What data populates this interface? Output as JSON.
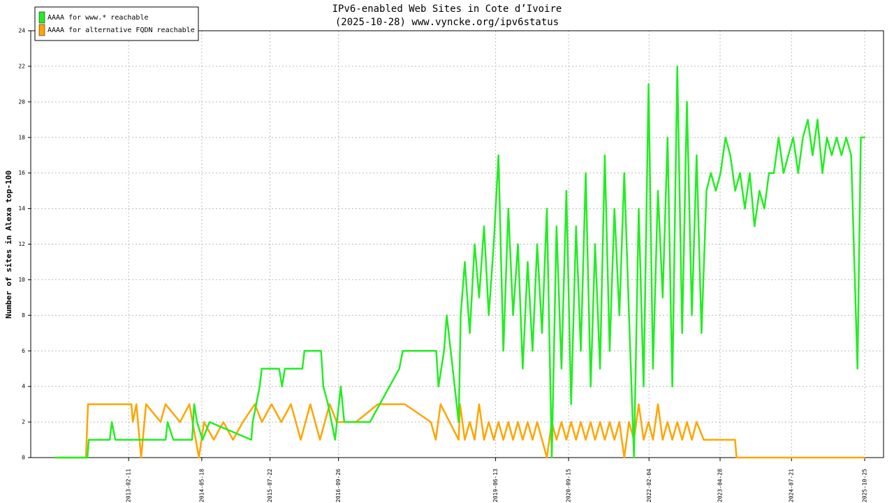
{
  "chart_data": {
    "type": "line",
    "title": "IPv6-enabled Web Sites in Cote d’Ivoire",
    "subtitle": "(2025-10-28) www.vyncke.org/ipv6status",
    "y_label": "Number of sites in Alexa top-100",
    "xlim": [
      "2011-06-05",
      "2026-02-21"
    ],
    "xticks": [
      "2013-02-11",
      "2014-05-18",
      "2015-07-22",
      "2016-09-26",
      "2019-06-13",
      "2020-09-15",
      "2022-02-04",
      "2023-04-28",
      "2024-07-21",
      "2025-10-25"
    ],
    "ylim": [
      0,
      24
    ],
    "yticks": [
      0,
      2,
      4,
      6,
      8,
      10,
      12,
      14,
      16,
      18,
      20,
      22,
      24
    ],
    "grid": true,
    "legend": "upper left",
    "series": [
      {
        "name": "AAAA for www.* reachable",
        "color": "#22ee22",
        "x": [
          "2011-11-03",
          "2012-05-27",
          "2012-06-05",
          "2012-10-15",
          "2012-10-28",
          "2012-11-19",
          "2013-10-02",
          "2013-10-15",
          "2013-11-20",
          "2014-03-18",
          "2014-03-31",
          "2014-04-18",
          "2014-05-23",
          "2014-07-06",
          "2015-03-26",
          "2015-04-04",
          "2015-05-18",
          "2015-05-31",
          "2015-09-18",
          "2015-10-06",
          "2015-10-24",
          "2016-02-11",
          "2016-02-24",
          "2016-06-08",
          "2016-06-22",
          "2016-07-22",
          "2016-08-13",
          "2016-09-04",
          "2016-10-10",
          "2016-11-01",
          "2017-04-12",
          "2017-10-14",
          "2017-11-05",
          "2018-06-04",
          "2018-06-18",
          "2018-07-23",
          "2018-08-09",
          "2018-10-23",
          "2018-11-05",
          "2018-12-01",
          "2019-01-01",
          "2019-02-01",
          "2019-03-01",
          "2019-04-01",
          "2019-05-01",
          "2019-06-01",
          "2019-07-01",
          "2019-08-01",
          "2019-09-01",
          "2019-10-01",
          "2019-11-01",
          "2019-12-01",
          "2020-01-01",
          "2020-02-01",
          "2020-03-01",
          "2020-04-01",
          "2020-05-01",
          "2020-06-01",
          "2020-07-01",
          "2020-08-01",
          "2020-09-01",
          "2020-10-01",
          "2020-11-01",
          "2020-12-01",
          "2021-01-01",
          "2021-02-01",
          "2021-03-01",
          "2021-04-01",
          "2021-05-01",
          "2021-06-01",
          "2021-07-01",
          "2021-08-01",
          "2021-09-01",
          "2021-10-01",
          "2021-11-01",
          "2021-12-01",
          "2022-01-01",
          "2022-02-01",
          "2022-03-01",
          "2022-04-01",
          "2022-05-01",
          "2022-06-01",
          "2022-07-01",
          "2022-08-01",
          "2022-09-01",
          "2022-10-01",
          "2022-11-01",
          "2022-12-01",
          "2023-01-01",
          "2023-02-01",
          "2023-03-01",
          "2023-04-01",
          "2023-05-01",
          "2023-06-01",
          "2023-07-01",
          "2023-08-01",
          "2023-09-01",
          "2023-10-01",
          "2023-11-01",
          "2023-12-01",
          "2024-01-01",
          "2024-02-01",
          "2024-03-01",
          "2024-04-01",
          "2024-05-01",
          "2024-06-01",
          "2024-07-01",
          "2024-08-01",
          "2024-09-01",
          "2024-10-01",
          "2024-11-01",
          "2024-12-01",
          "2025-01-01",
          "2025-02-01",
          "2025-03-01",
          "2025-04-01",
          "2025-05-01",
          "2025-06-01",
          "2025-07-01",
          "2025-08-01",
          "2025-09-10",
          "2025-10-01",
          "2025-10-28"
        ],
        "values": [
          0,
          0,
          1,
          1,
          2,
          1,
          1,
          2,
          1,
          1,
          3,
          2,
          1,
          2,
          1,
          2,
          4,
          5,
          5,
          4,
          5,
          5,
          6,
          6,
          4,
          3,
          2,
          1,
          4,
          2,
          2,
          5,
          6,
          6,
          4,
          6,
          8,
          2,
          8,
          11,
          7,
          12,
          9,
          13,
          8,
          12,
          17,
          6,
          14,
          8,
          12,
          5,
          11,
          6,
          12,
          7,
          14,
          0,
          13,
          5,
          15,
          3,
          13,
          6,
          16,
          4,
          12,
          5,
          17,
          6,
          14,
          8,
          16,
          8,
          0,
          14,
          4,
          21,
          5,
          15,
          9,
          18,
          4,
          22,
          7,
          20,
          8,
          17,
          7,
          15,
          16,
          15,
          16,
          18,
          17,
          15,
          16,
          14,
          16,
          13,
          15,
          14,
          16,
          16,
          18,
          16,
          17,
          18,
          16,
          18,
          19,
          17,
          19,
          16,
          18,
          17,
          18,
          17,
          18,
          17,
          5,
          18,
          18
        ]
      },
      {
        "name": "AAAA for alternative FQDN reachable",
        "color": "#ffa500",
        "x": [
          "2011-11-03",
          "2012-05-18",
          "2012-05-31",
          "2013-03-01",
          "2013-03-09",
          "2013-04-01",
          "2013-05-01",
          "2013-06-01",
          "2013-09-01",
          "2013-10-01",
          "2014-01-01",
          "2014-03-01",
          "2014-04-30",
          "2014-06-01",
          "2014-08-01",
          "2014-10-01",
          "2014-12-01",
          "2015-02-01",
          "2015-04-17",
          "2015-06-01",
          "2015-08-01",
          "2015-10-01",
          "2015-12-01",
          "2016-02-01",
          "2016-04-01",
          "2016-06-01",
          "2016-08-01",
          "2016-09-15",
          "2017-01-14",
          "2017-06-01",
          "2017-11-18",
          "2018-05-01",
          "2018-06-01",
          "2018-07-01",
          "2018-10-23",
          "2018-11-01",
          "2018-12-01",
          "2019-01-01",
          "2019-02-01",
          "2019-03-01",
          "2019-04-01",
          "2019-05-01",
          "2019-06-01",
          "2019-07-01",
          "2019-08-01",
          "2019-09-01",
          "2019-10-01",
          "2019-11-01",
          "2019-12-01",
          "2020-01-01",
          "2020-02-01",
          "2020-03-01",
          "2020-04-01",
          "2020-05-01",
          "2020-06-01",
          "2020-07-01",
          "2020-08-01",
          "2020-09-01",
          "2020-10-01",
          "2020-11-01",
          "2020-12-01",
          "2021-01-01",
          "2021-02-01",
          "2021-03-01",
          "2021-04-01",
          "2021-05-01",
          "2021-06-01",
          "2021-07-01",
          "2021-08-01",
          "2021-09-01",
          "2021-10-01",
          "2021-11-01",
          "2021-12-01",
          "2022-01-01",
          "2022-02-01",
          "2022-03-01",
          "2022-04-01",
          "2022-05-01",
          "2022-06-01",
          "2022-07-01",
          "2022-08-01",
          "2022-09-01",
          "2022-10-01",
          "2022-11-01",
          "2022-12-01",
          "2023-01-15",
          "2023-07-31",
          "2023-08-10",
          "2025-10-28"
        ],
        "values": [
          0,
          0,
          3,
          3,
          2,
          3,
          0,
          3,
          2,
          3,
          2,
          3,
          0,
          2,
          1,
          2,
          1,
          2,
          3,
          2,
          3,
          2,
          3,
          1,
          3,
          1,
          3,
          2,
          2,
          3,
          3,
          2,
          1,
          3,
          1,
          3,
          1,
          2,
          1,
          3,
          1,
          2,
          1,
          2,
          1,
          2,
          1,
          2,
          1,
          2,
          1,
          2,
          1,
          0,
          2,
          1,
          2,
          1,
          2,
          1,
          2,
          1,
          2,
          1,
          2,
          1,
          2,
          1,
          2,
          0,
          2,
          1,
          3,
          1,
          2,
          1,
          3,
          1,
          2,
          1,
          2,
          1,
          2,
          1,
          2,
          1,
          1,
          0,
          0
        ]
      }
    ]
  }
}
